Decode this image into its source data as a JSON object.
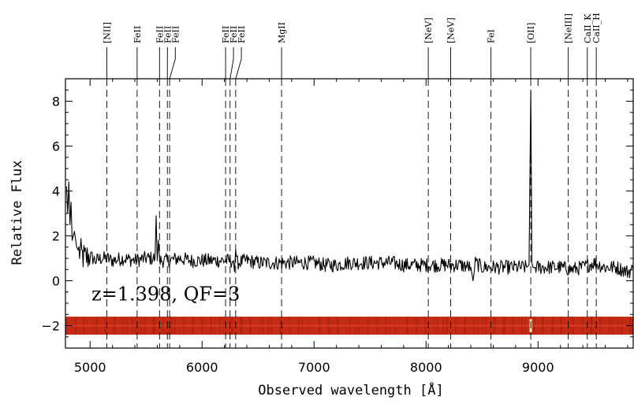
{
  "chart_data": {
    "type": "line",
    "title": "",
    "xlabel": "Observed wavelength [Å]",
    "ylabel": "Relative Flux",
    "xlim": [
      4780,
      9850
    ],
    "ylim": [
      -3.0,
      9.0
    ],
    "x_ticks": [
      5000,
      6000,
      7000,
      8000,
      9000
    ],
    "x_tick_labels": [
      "5000",
      "6000",
      "7000",
      "8000",
      "9000"
    ],
    "y_ticks": [
      -2,
      0,
      2,
      4,
      6,
      8
    ],
    "y_tick_labels": [
      "−2",
      "0",
      "2",
      "4",
      "6",
      "8"
    ],
    "annotation": "z=1.398, QF=3",
    "series": [
      {
        "color": "#000000",
        "x": [
          4790,
          4800,
          4810,
          4820,
          4830,
          4840,
          4860,
          4880,
          4900,
          4950,
          5000,
          5050,
          5100,
          5150,
          5200,
          5300,
          5400,
          5500,
          5580,
          5590,
          5600,
          5610,
          5620,
          5700,
          5800,
          5900,
          6000,
          6100,
          6200,
          6280,
          6290,
          6300,
          6310,
          6400,
          6500,
          6600,
          6700,
          6800,
          6900,
          7000,
          7100,
          7200,
          7300,
          7400,
          7500,
          7600,
          7700,
          7800,
          7900,
          8000,
          8100,
          8200,
          8300,
          8400,
          8420,
          8440,
          8500,
          8600,
          8700,
          8800,
          8900,
          8920,
          8935,
          8945,
          8955,
          8970,
          9000,
          9100,
          9200,
          9300,
          9400,
          9500,
          9600,
          9700,
          9800,
          9850
        ],
        "y": [
          4.2,
          3.0,
          4.4,
          2.5,
          3.5,
          1.8,
          2.2,
          1.5,
          1.3,
          1.0,
          1.1,
          0.9,
          1.0,
          1.0,
          0.9,
          1.0,
          0.9,
          1.0,
          1.0,
          2.9,
          0.9,
          1.8,
          0.9,
          0.9,
          1.0,
          0.9,
          0.9,
          0.9,
          0.9,
          0.9,
          0.4,
          1.4,
          0.8,
          0.9,
          0.8,
          0.8,
          0.8,
          0.8,
          0.8,
          0.8,
          0.7,
          0.7,
          0.8,
          0.8,
          0.8,
          0.8,
          0.8,
          0.7,
          0.7,
          0.7,
          0.7,
          0.7,
          0.7,
          0.6,
          0.0,
          0.8,
          0.6,
          0.6,
          0.6,
          0.6,
          0.6,
          0.7,
          8.5,
          0.8,
          0.6,
          0.6,
          0.6,
          0.6,
          0.6,
          0.5,
          0.6,
          0.8,
          0.6,
          0.6,
          0.4,
          0.5
        ]
      }
    ],
    "spectral_lines": [
      {
        "label": "[NII]",
        "x": 5150
      },
      {
        "label": "FeII",
        "x": 5420
      },
      {
        "label": "FeII",
        "x": 5620
      },
      {
        "label": "FeII",
        "x": 5690
      },
      {
        "label": "FeII",
        "x": 5710
      },
      {
        "label": "FeII",
        "x": 6210
      },
      {
        "label": "FeII",
        "x": 6250
      },
      {
        "label": "FeII",
        "x": 6300
      },
      {
        "label": "MgII",
        "x": 6710
      },
      {
        "label": "[NeV]",
        "x": 8020
      },
      {
        "label": "[NeV]",
        "x": 8220
      },
      {
        "label": "FeI",
        "x": 8580
      },
      {
        "label": "[OII]",
        "x": 8935
      },
      {
        "label": "[NeIII]",
        "x": 9270
      },
      {
        "label": "CaII_K",
        "x": 9440
      },
      {
        "label": "CaII_H",
        "x": 9520
      }
    ],
    "grid": false,
    "legend": "none",
    "spectrum_2d_strip": {
      "y_range": [
        -2.4,
        -1.6
      ],
      "color": "#c42a14"
    }
  }
}
